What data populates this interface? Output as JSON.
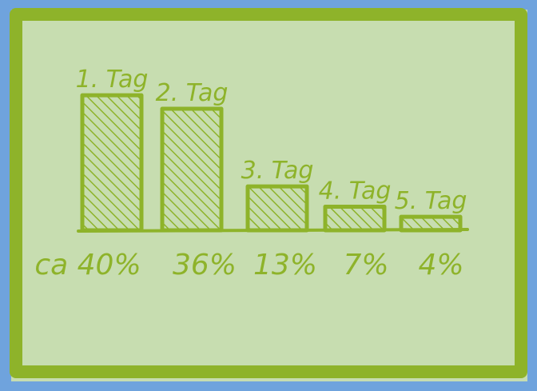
{
  "colors": {
    "background": "#6fa3dd",
    "board": "#c7ddb0",
    "ink": "#8eb32a",
    "ink_dark": "#7ea024"
  },
  "chart_data": {
    "type": "bar",
    "categories": [
      "1. Tag",
      "2. Tag",
      "3. Tag",
      "4. Tag",
      "5. Tag"
    ],
    "values": [
      40,
      36,
      13,
      7,
      4
    ],
    "value_labels": [
      "ca 40%",
      "36%",
      "13%",
      "7%",
      "4%"
    ],
    "ylim": [
      0,
      45
    ],
    "grid": false,
    "legend": "none",
    "hatched": true
  }
}
